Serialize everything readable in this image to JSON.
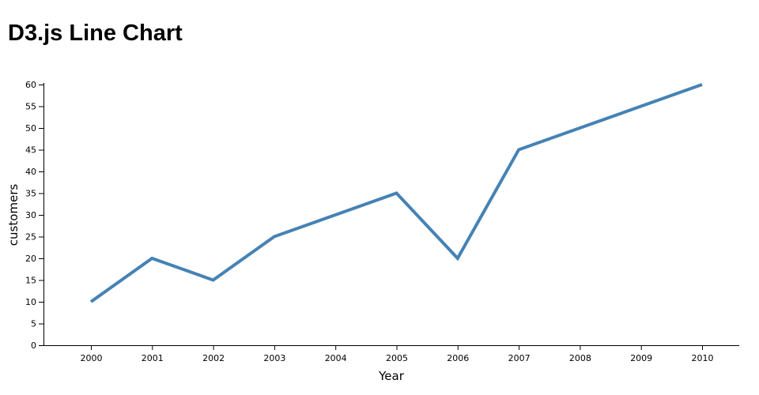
{
  "page": {
    "title": "D3.js Line Chart"
  },
  "chart_data": {
    "type": "line",
    "title": "D3.js Line Chart",
    "x": [
      2000,
      2001,
      2002,
      2003,
      2004,
      2005,
      2006,
      2007,
      2008,
      2009,
      2010
    ],
    "values": [
      10,
      20,
      15,
      25,
      30,
      35,
      20,
      45,
      50,
      55,
      60
    ],
    "series": [
      {
        "name": "customers",
        "values": [
          10,
          20,
          15,
          25,
          30,
          35,
          20,
          45,
          50,
          55,
          60
        ]
      }
    ],
    "xlabel": "Year",
    "ylabel": "customers",
    "ylim": [
      0,
      60
    ],
    "y_ticks": [
      0,
      5,
      10,
      15,
      20,
      25,
      30,
      35,
      40,
      45,
      50,
      55,
      60
    ],
    "x_ticks": [
      "2000",
      "2001",
      "2002",
      "2003",
      "2004",
      "2005",
      "2006",
      "2007",
      "2008",
      "2009",
      "2010"
    ],
    "grid": false,
    "legend_position": "none",
    "line_color": "#4682b4",
    "axis_color": "#000000",
    "background_color": "#ffffff"
  }
}
